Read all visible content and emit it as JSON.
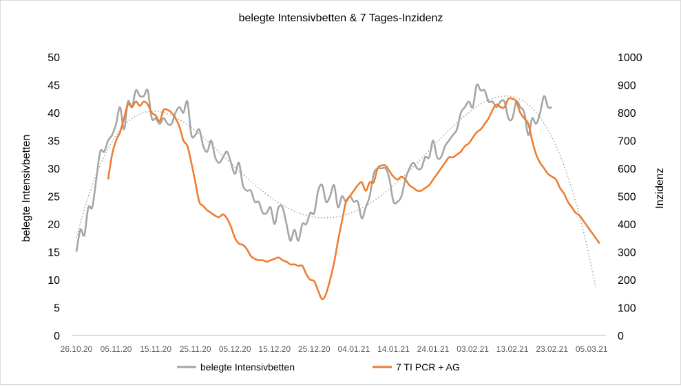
{
  "chart_data": {
    "type": "line",
    "title": "belegte Intensivbetten  & 7 Tages-Inzidenz",
    "ylabel_left": "belegte Intensivbetten",
    "ylabel_right": "Inzidenz",
    "ylim_left": [
      0,
      50
    ],
    "ylim_right": [
      0,
      1000
    ],
    "yticks_left": [
      "0",
      "5",
      "10",
      "15",
      "20",
      "25",
      "30",
      "35",
      "40",
      "45",
      "50"
    ],
    "yticks_right": [
      "0",
      "100",
      "200",
      "300",
      "400",
      "500",
      "600",
      "700",
      "800",
      "900",
      "1000"
    ],
    "xticks": [
      "26.10.20",
      "05.11.20",
      "15.11.20",
      "25.11.20",
      "05.12.20",
      "15.12.20",
      "25.12.20",
      "04.01.21",
      "14.01.21",
      "24.01.21",
      "03.02.21",
      "13.02.21",
      "23.02.21",
      "05.03.21"
    ],
    "x_start_label": "26.10.20",
    "x_days": 131,
    "legend_position": "bottom",
    "grid": false,
    "trendline": "polynomial, dotted grey, fitted to belegte Intensivbetten",
    "series": [
      {
        "name": "belegte Intensivbetten",
        "axis": "left",
        "color": "#a5a5a5",
        "values": [
          15,
          19,
          18,
          23,
          23,
          28,
          33,
          33,
          35,
          36,
          38,
          41,
          37,
          42,
          41,
          44,
          43,
          43,
          44,
          39,
          39,
          38,
          39,
          38,
          38,
          40,
          41,
          40,
          42,
          36,
          36,
          37,
          34,
          33,
          35,
          32,
          31,
          32,
          33,
          31,
          29,
          31,
          27,
          26,
          26,
          24,
          24,
          22,
          22,
          23,
          20,
          23,
          23,
          20,
          17,
          19,
          17,
          20,
          20,
          22,
          22,
          26,
          27,
          24,
          25,
          27,
          23,
          25,
          24,
          25,
          24,
          24,
          21,
          23,
          25,
          29,
          30,
          30,
          30,
          28,
          24,
          24,
          25,
          28,
          30,
          31,
          30,
          30,
          32,
          32,
          35,
          32,
          32,
          34,
          35,
          36,
          37,
          40,
          41,
          42,
          41,
          45,
          44,
          44,
          42,
          42,
          41,
          42,
          42,
          39,
          39,
          42,
          41,
          40,
          36,
          39,
          38,
          40,
          43,
          41,
          41
        ]
      },
      {
        "name": "7 TI PCR + AG",
        "axis": "right",
        "color": "#ed7d31",
        "start_offset": 8,
        "values": [
          560,
          650,
          700,
          730,
          780,
          830,
          820,
          840,
          825,
          840,
          830,
          800,
          790,
          770,
          810,
          810,
          800,
          780,
          750,
          700,
          680,
          620,
          550,
          480,
          465,
          450,
          440,
          430,
          425,
          435,
          420,
          390,
          350,
          330,
          325,
          310,
          285,
          275,
          270,
          270,
          265,
          270,
          275,
          280,
          270,
          265,
          255,
          255,
          250,
          250,
          220,
          200,
          195,
          160,
          130,
          150,
          200,
          260,
          340,
          410,
          480,
          500,
          520,
          540,
          550,
          520,
          550,
          550,
          600,
          610,
          610,
          590,
          570,
          560,
          570,
          560,
          540,
          530,
          520,
          520,
          530,
          540,
          560,
          580,
          600,
          620,
          640,
          640,
          650,
          660,
          680,
          690,
          710,
          730,
          740,
          760,
          780,
          810,
          830,
          820,
          820,
          850,
          850,
          840,
          800,
          780,
          760,
          700,
          650,
          620,
          600,
          580,
          570,
          560,
          530,
          510,
          480,
          460,
          440,
          430,
          410,
          390,
          370,
          350,
          330
        ]
      }
    ]
  }
}
